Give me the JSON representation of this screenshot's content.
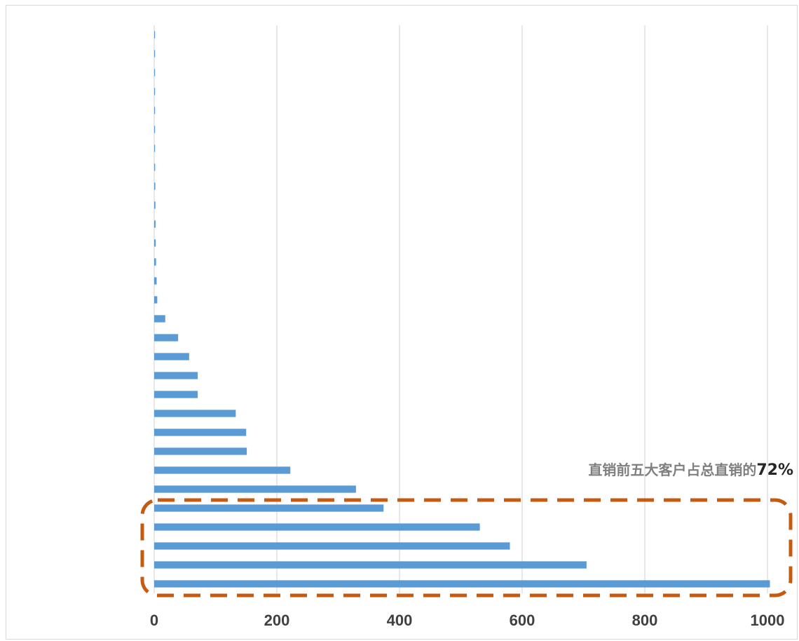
{
  "chart_data": {
    "type": "bar",
    "orientation": "horizontal",
    "xlim": [
      0,
      1000
    ],
    "x_ticks": [
      "0",
      "200",
      "400",
      "600",
      "800",
      "1000"
    ],
    "grid": "vertical",
    "series": [
      {
        "values": [
          1004,
          705,
          580,
          531,
          374,
          329,
          222,
          151,
          150,
          133,
          71,
          71,
          57,
          39,
          18,
          5,
          4,
          3,
          2.5,
          2.2,
          2,
          1.8,
          1.5,
          1.2,
          1,
          0.8,
          0.6,
          0.5,
          0.4,
          0.3
        ],
        "color": "#5b9bd5"
      }
    ],
    "annotation": {
      "text": "直销前五大客户占总直销的",
      "highlight": "72%",
      "highlight_color": "#c55a11",
      "text_color": "#7f7f7f"
    }
  }
}
